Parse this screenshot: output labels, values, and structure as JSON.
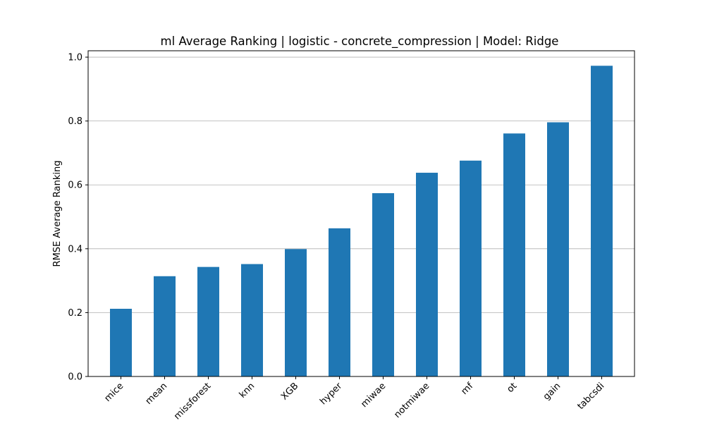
{
  "chart_data": {
    "type": "bar",
    "title": "ml Average Ranking | logistic - concrete_compression | Model: Ridge",
    "xlabel": "",
    "ylabel": "RMSE Average Ranking",
    "categories": [
      "mice",
      "mean",
      "missforest",
      "knn",
      "XGB",
      "hyper",
      "miwae",
      "notmiwae",
      "mf",
      "ot",
      "gain",
      "tabcsdi"
    ],
    "values": [
      0.212,
      0.314,
      0.343,
      0.352,
      0.399,
      0.464,
      0.574,
      0.638,
      0.676,
      0.761,
      0.796,
      0.973
    ],
    "ylim": [
      0,
      1.02
    ],
    "yticks": [
      "0.0",
      "0.2",
      "0.4",
      "0.6",
      "0.8",
      "1.0"
    ],
    "grid": "y",
    "legend": "none",
    "bar_color": "#1f77b4",
    "grid_color": "#b0b0b0"
  }
}
